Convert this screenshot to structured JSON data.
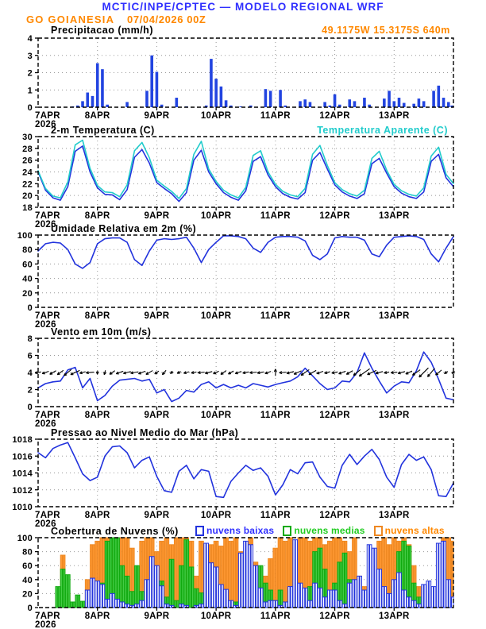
{
  "header": {
    "title": "MCTIC/INPE/CPTEC — MODELO REGIONAL WRF",
    "station": "GO GOIANESIA",
    "run": "07/04/2026 00Z",
    "coords": "49.1175W 15.3175S 640m",
    "title_color": "#2f2fff",
    "accent_color": "#ff8800"
  },
  "x_axis": {
    "start_label": "7APR",
    "start_year": "2026",
    "day_labels": [
      "8APR",
      "9APR",
      "10APR",
      "11APR",
      "12APR",
      "13APR"
    ],
    "hours_total": 168
  },
  "chart_data": [
    {
      "id": "precip",
      "type": "bar",
      "title": "Precipitacao (mm/h)",
      "ylim": [
        0,
        4
      ],
      "yticks": [
        0,
        1,
        2,
        3,
        4
      ],
      "step_h": 2,
      "color": "#2244e0",
      "values": [
        0,
        0,
        0,
        0,
        0,
        0,
        0,
        0.05,
        0.1,
        0.35,
        0.85,
        0.65,
        2.55,
        2.2,
        0.15,
        0,
        0,
        0,
        0.3,
        0,
        0,
        0,
        0.95,
        3.0,
        2.05,
        0.15,
        0,
        0,
        0.55,
        0,
        0.05,
        0,
        0,
        0,
        0.1,
        2.8,
        1.65,
        1.2,
        0.4,
        0.1,
        0,
        0.05,
        0,
        0.1,
        0,
        0,
        1.05,
        0.95,
        0,
        1.0,
        0.1,
        0,
        0,
        0.35,
        0.45,
        0.3,
        0,
        0,
        0.3,
        0.1,
        0.75,
        0.15,
        0,
        0.45,
        0.35,
        0,
        0.55,
        0.15,
        0,
        0,
        0.5,
        0.95,
        0.35,
        0.55,
        0.25,
        0,
        0.2,
        0.5,
        0.35,
        0,
        0.95,
        1.25,
        0.55,
        0.3,
        0.1
      ]
    },
    {
      "id": "temp",
      "type": "line",
      "title": "2-m Temperatura (C)",
      "legend": "Temperatura Aparente (C)",
      "legend_color": "#22cccc",
      "ylim": [
        18,
        30
      ],
      "yticks": [
        18,
        20,
        22,
        24,
        26,
        28,
        30
      ],
      "step_h": 3,
      "series": [
        {
          "name": "2-m Temperatura",
          "color": "#2233dd",
          "values": [
            24.0,
            20.9,
            19.6,
            19.2,
            21.5,
            27.5,
            28.4,
            24.0,
            21.3,
            20.2,
            20.1,
            19.3,
            21.0,
            26.5,
            27.8,
            25.5,
            22.2,
            21.2,
            20.3,
            19.0,
            20.5,
            26.0,
            27.7,
            24.0,
            22.0,
            20.5,
            19.7,
            19.2,
            20.8,
            25.8,
            26.6,
            23.5,
            21.5,
            20.3,
            19.7,
            19.4,
            20.5,
            26.0,
            27.3,
            24.5,
            21.8,
            20.6,
            19.9,
            19.5,
            20.3,
            25.4,
            26.3,
            23.8,
            21.5,
            20.4,
            19.8,
            19.5,
            20.6,
            25.8,
            27.0,
            23.0,
            21.5
          ]
        },
        {
          "name": "Temperatura Aparente",
          "color": "#22cccc",
          "values": [
            24.2,
            21.2,
            19.9,
            19.6,
            22.3,
            28.6,
            29.4,
            24.6,
            21.7,
            20.6,
            20.5,
            19.8,
            21.8,
            27.6,
            29.0,
            26.4,
            22.6,
            21.6,
            20.7,
            19.5,
            21.2,
            27.0,
            29.2,
            24.5,
            22.4,
            20.9,
            20.1,
            19.6,
            21.4,
            26.8,
            27.6,
            24.0,
            21.9,
            20.7,
            20.1,
            19.8,
            21.2,
            27.0,
            28.5,
            25.1,
            22.2,
            21.0,
            20.3,
            19.9,
            20.9,
            26.3,
            27.5,
            24.3,
            21.9,
            20.8,
            20.2,
            19.9,
            21.3,
            26.7,
            28.2,
            23.6,
            22.0
          ]
        }
      ]
    },
    {
      "id": "rh",
      "type": "line",
      "title": "Umidade Relativa em 2m (%)",
      "ylim": [
        0,
        100
      ],
      "yticks": [
        0,
        20,
        40,
        60,
        80,
        100
      ],
      "step_h": 3,
      "series": [
        {
          "name": "Umidade Relativa",
          "color": "#2233dd",
          "values": [
            78,
            88,
            90,
            89,
            80,
            60,
            54,
            62,
            88,
            95,
            96,
            96,
            90,
            66,
            58,
            78,
            93,
            95,
            94,
            95,
            97,
            82,
            62,
            80,
            90,
            99,
            99,
            98,
            95,
            82,
            76,
            90,
            97,
            98,
            98,
            97,
            92,
            72,
            66,
            74,
            96,
            98,
            97,
            97,
            93,
            74,
            70,
            86,
            97,
            98,
            99,
            98,
            94,
            74,
            63,
            82,
            98
          ]
        }
      ]
    },
    {
      "id": "wind",
      "type": "wind",
      "title": "Vento em 10m (m/s)",
      "ylim": [
        0,
        8
      ],
      "yticks": [
        0,
        2,
        4,
        6,
        8
      ],
      "step_h": 3,
      "arrow_level": 4,
      "arrow_color": "#000000",
      "series": [
        {
          "name": "Velocidade",
          "color": "#2233dd",
          "values": [
            2.2,
            2.7,
            2.9,
            3.0,
            4.3,
            4.6,
            2.2,
            3.3,
            0.7,
            1.3,
            2.4,
            3.1,
            3.2,
            3.3,
            3.0,
            3.2,
            1.6,
            2.0,
            0.6,
            1.0,
            1.9,
            1.7,
            2.6,
            2.9,
            2.2,
            2.6,
            2.2,
            2.5,
            2.2,
            2.7,
            2.5,
            2.3,
            2.6,
            2.8,
            3.0,
            3.5,
            4.5,
            3.6,
            2.7,
            2.0,
            2.2,
            3.0,
            2.9,
            4.0,
            6.3,
            4.5,
            3.0,
            1.6,
            2.4,
            2.9,
            2.8,
            4.2,
            6.4,
            5.2,
            3.2,
            1.0,
            0.8
          ]
        }
      ],
      "directions_deg": [
        190,
        200,
        210,
        215,
        220,
        205,
        195,
        185,
        265,
        255,
        215,
        200,
        195,
        190,
        200,
        210,
        215,
        230,
        220,
        205,
        195,
        190,
        185,
        195,
        205,
        215,
        210,
        200,
        190,
        185,
        190,
        200,
        90,
        185,
        195,
        205,
        215,
        210,
        200,
        195,
        190,
        200,
        210,
        220,
        215,
        205,
        195,
        190,
        185,
        195,
        205,
        215,
        225,
        230,
        220,
        215,
        210
      ]
    },
    {
      "id": "pressure",
      "type": "line",
      "title": "Pressao ao Nivel Medio do Mar (hPa)",
      "ylim": [
        1010,
        1018
      ],
      "yticks": [
        1010,
        1012,
        1014,
        1016,
        1018
      ],
      "step_h": 3,
      "series": [
        {
          "name": "Pressao",
          "color": "#2233dd",
          "values": [
            1016.4,
            1015.8,
            1016.9,
            1017.3,
            1017.6,
            1015.8,
            1013.9,
            1013.1,
            1013.5,
            1016.0,
            1017.1,
            1017.2,
            1016.4,
            1014.6,
            1015.5,
            1015.9,
            1013.6,
            1011.9,
            1011.7,
            1014.2,
            1014.9,
            1013.3,
            1014.4,
            1014.2,
            1011.2,
            1011.1,
            1013.0,
            1014.0,
            1014.9,
            1014.3,
            1014.6,
            1013.6,
            1011.4,
            1012.6,
            1014.4,
            1013.9,
            1015.2,
            1015.3,
            1013.5,
            1012.4,
            1012.2,
            1014.9,
            1016.2,
            1015.0,
            1016.0,
            1016.8,
            1015.6,
            1013.5,
            1012.3,
            1015.0,
            1016.2,
            1015.5,
            1015.9,
            1014.4,
            1011.3,
            1011.2,
            1012.8
          ]
        }
      ]
    },
    {
      "id": "clouds",
      "type": "bars3",
      "title": "Cobertura de Nuvens (%)",
      "ylim": [
        0,
        100
      ],
      "yticks": [
        0,
        20,
        40,
        60,
        80,
        100
      ],
      "step_h": 2,
      "series": [
        {
          "name": "nuvens baixas",
          "color": "#2233dd",
          "fill": "#ffffff",
          "values": [
            0,
            0,
            0,
            0,
            0,
            0,
            0,
            0,
            0,
            0,
            25,
            42,
            38,
            33,
            12,
            20,
            12,
            8,
            5,
            3,
            5,
            10,
            40,
            73,
            60,
            31,
            5,
            3,
            0,
            5,
            3,
            0,
            3,
            5,
            92,
            64,
            58,
            33,
            26,
            10,
            3,
            78,
            95,
            90,
            60,
            28,
            8,
            10,
            10,
            3,
            8,
            30,
            97,
            35,
            28,
            10,
            35,
            28,
            15,
            25,
            25,
            10,
            5,
            35,
            40,
            45,
            25,
            90,
            85,
            55,
            30,
            20,
            40,
            50,
            25,
            15,
            10,
            5,
            33,
            38,
            30,
            92,
            95,
            40,
            15
          ]
        },
        {
          "name": "nuvens medias",
          "color": "#11aa11",
          "fill": "#44cc44",
          "values": [
            0,
            0,
            0,
            0,
            30,
            55,
            47,
            8,
            18,
            9,
            10,
            15,
            8,
            35,
            95,
            100,
            100,
            60,
            45,
            23,
            60,
            23,
            5,
            10,
            5,
            38,
            15,
            69,
            10,
            60,
            97,
            58,
            27,
            21,
            5,
            20,
            8,
            5,
            0,
            5,
            8,
            5,
            10,
            5,
            35,
            60,
            35,
            25,
            10,
            25,
            5,
            10,
            15,
            20,
            10,
            30,
            80,
            85,
            55,
            20,
            35,
            65,
            78,
            40,
            25,
            18,
            25,
            10,
            15,
            30,
            20,
            15,
            30,
            80,
            95,
            88,
            35,
            15,
            5,
            0,
            0,
            0,
            55,
            30,
            10
          ]
        },
        {
          "name": "nuvens altas",
          "color": "#ee8822",
          "fill": "#ff9933",
          "values": [
            0,
            0,
            0,
            0,
            0,
            75,
            20,
            0,
            0,
            0,
            40,
            90,
            95,
            100,
            100,
            100,
            100,
            100,
            100,
            85,
            45,
            95,
            100,
            100,
            80,
            95,
            100,
            90,
            100,
            100,
            100,
            95,
            45,
            95,
            85,
            90,
            95,
            88,
            100,
            95,
            100,
            80,
            60,
            100,
            65,
            30,
            45,
            70,
            85,
            100,
            95,
            100,
            68,
            100,
            100,
            95,
            100,
            100,
            90,
            95,
            100,
            100,
            95,
            80,
            100,
            45,
            30,
            20,
            60,
            95,
            100,
            90,
            100,
            95,
            100,
            90,
            60,
            30,
            10,
            20,
            5,
            0,
            100,
            100,
            95
          ]
        }
      ],
      "legend_text_colors": [
        "#2f2fff",
        "#22cc22",
        "#ff8800"
      ]
    }
  ]
}
